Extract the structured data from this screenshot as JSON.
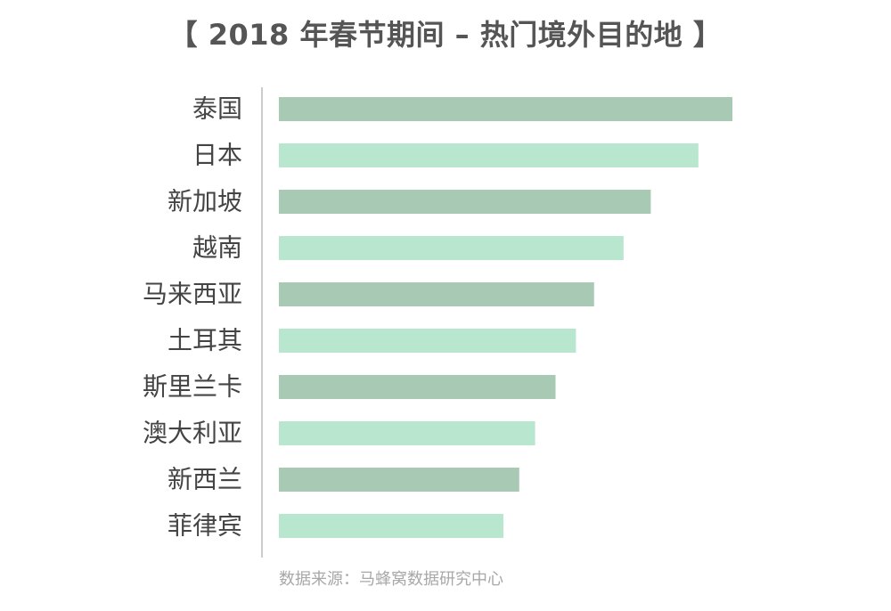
{
  "title": "【 2018 年春节期间 – 热门境外目的地 】",
  "source": "数据来源：马蜂窝数据研究中心",
  "colors": {
    "dark": "#a8cab5",
    "light": "#b8e6cf",
    "axis": "#cccccc"
  },
  "chart_data": {
    "type": "bar",
    "orientation": "horizontal",
    "title": "【 2018 年春节期间 – 热门境外目的地 】",
    "categories": [
      "泰国",
      "日本",
      "新加坡",
      "越南",
      "马来西亚",
      "土耳其",
      "斯里兰卡",
      "澳大利亚",
      "新西兰",
      "菲律宾"
    ],
    "values": [
      100,
      92.5,
      82,
      76,
      69.5,
      65.5,
      61,
      56.5,
      53,
      49.5
    ],
    "xlim": [
      0,
      100
    ],
    "grid": false,
    "axis_labels_shown": false
  }
}
